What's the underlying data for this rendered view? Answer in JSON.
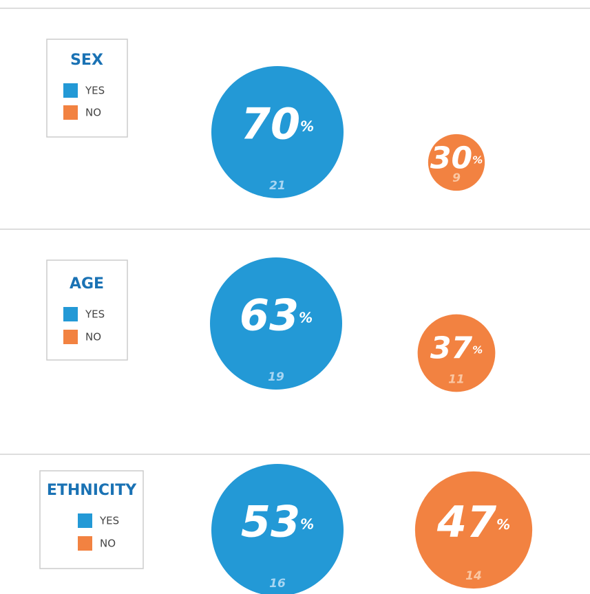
{
  "chart_data": [
    {
      "type": "bubble",
      "title": "SEX",
      "categories": [
        "YES",
        "NO"
      ],
      "values": [
        70,
        30
      ],
      "unit": "%",
      "counts": [
        21,
        9
      ],
      "colors": [
        "#2399d6",
        "#f28241"
      ]
    },
    {
      "type": "bubble",
      "title": "AGE",
      "categories": [
        "YES",
        "NO"
      ],
      "values": [
        63,
        37
      ],
      "unit": "%",
      "counts": [
        19,
        11
      ],
      "colors": [
        "#2399d6",
        "#f28241"
      ]
    },
    {
      "type": "bubble",
      "title": "ETHNICITY",
      "categories": [
        "YES",
        "NO"
      ],
      "values": [
        53,
        47
      ],
      "unit": "%",
      "counts": [
        16,
        14
      ],
      "colors": [
        "#2399d6",
        "#f28241"
      ]
    }
  ]
}
